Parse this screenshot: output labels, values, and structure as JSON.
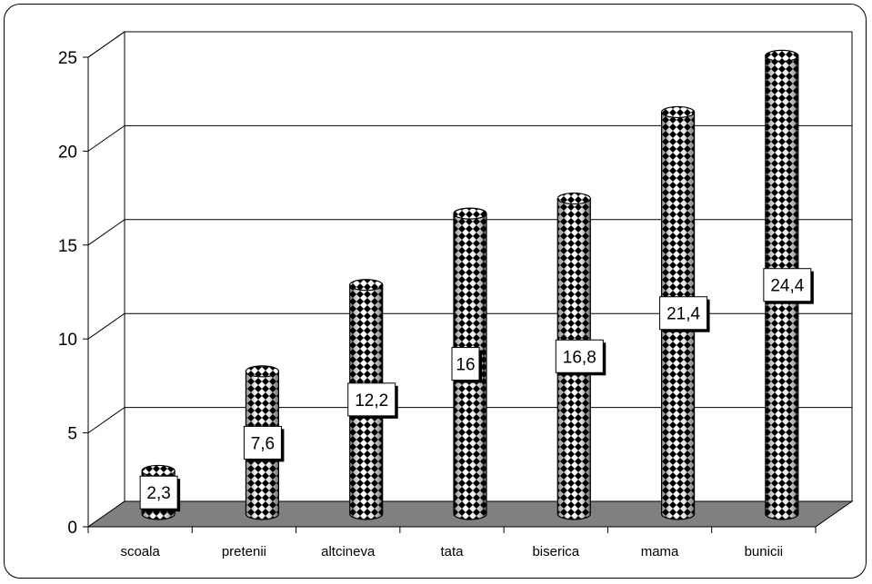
{
  "chart_data": {
    "type": "bar",
    "style": "3d-cylinder",
    "categories": [
      "scoala",
      "pretenii",
      "altcineva",
      "tata",
      "biserica",
      "mama",
      "bunicii"
    ],
    "values": [
      2.3,
      7.6,
      12.2,
      16,
      16.8,
      21.4,
      24.4
    ],
    "value_labels": [
      "2,3",
      "7,6",
      "12,2",
      "16",
      "16,8",
      "21,4",
      "24,4"
    ],
    "yticks": [
      "0",
      "5",
      "10",
      "15",
      "20",
      "25"
    ],
    "ytick_values": [
      0,
      5,
      10,
      15,
      20,
      25
    ],
    "ylim": [
      0,
      25
    ],
    "grid": true,
    "legend": "none",
    "colors": {
      "floor": "#808080",
      "grid": "#000000",
      "bar_dark": "#000000",
      "bar_light": "#ffffff",
      "label_bg": "#ffffff"
    }
  }
}
